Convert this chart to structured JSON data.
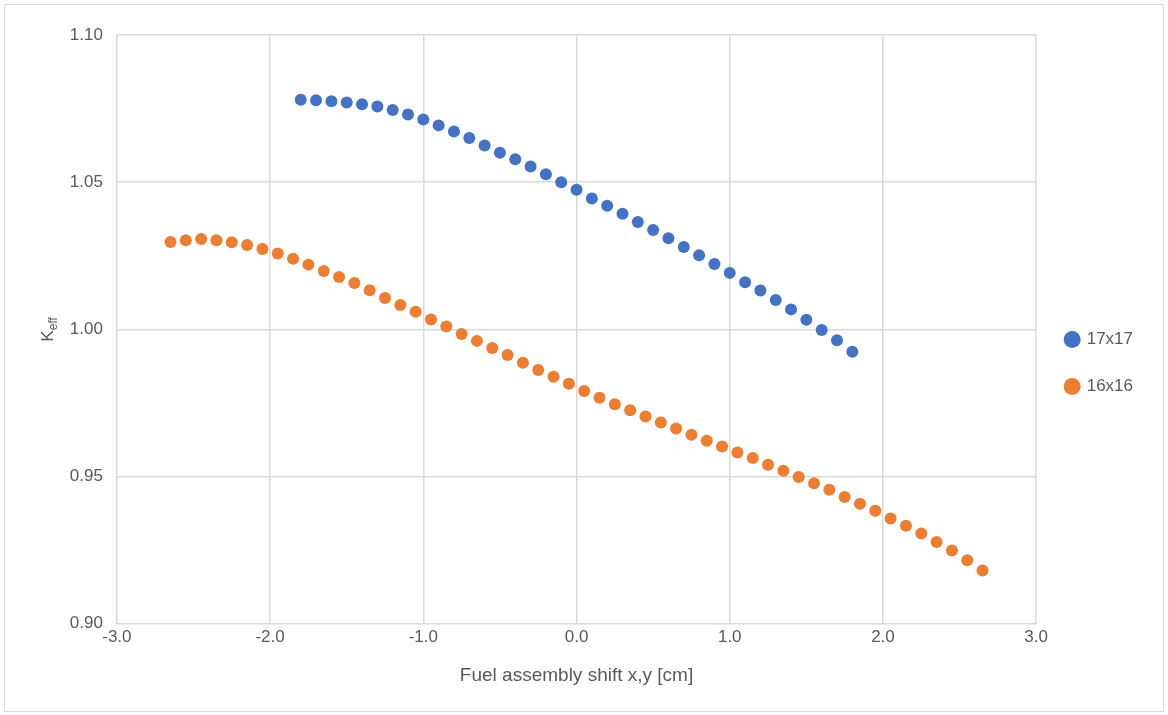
{
  "chart_data": {
    "type": "scatter",
    "xlabel": "Fuel assembly shift x,y [cm]",
    "ylabel": "K$_{eff}$",
    "xlim": [
      -3,
      3
    ],
    "ylim": [
      0.9,
      1.1
    ],
    "xticks": [
      {
        "value": -3,
        "label": "-3.0"
      },
      {
        "value": -2,
        "label": "-2.0"
      },
      {
        "value": -1,
        "label": "-1.0"
      },
      {
        "value": 0,
        "label": "0.0"
      },
      {
        "value": 1,
        "label": "1.0"
      },
      {
        "value": 2,
        "label": "2.0"
      },
      {
        "value": 3,
        "label": "3.0"
      }
    ],
    "yticks": [
      {
        "value": 0.9,
        "label": "0.90"
      },
      {
        "value": 0.95,
        "label": "0.95"
      },
      {
        "value": 1,
        "label": "1.00"
      },
      {
        "value": 1.05,
        "label": "1.05"
      },
      {
        "value": 1.1,
        "label": "1.10"
      }
    ],
    "grid": true,
    "legend": "right",
    "marker": "circle",
    "series": [
      {
        "name": "17x17",
        "color": "#4472c4",
        "x": [
          -1.8,
          -1.7,
          -1.6,
          -1.5,
          -1.4,
          -1.3,
          -1.2,
          -1.1,
          -1.0,
          -0.9,
          -0.8,
          -0.7,
          -0.6,
          -0.5,
          -0.4,
          -0.3,
          -0.2,
          -0.1,
          0.0,
          0.1,
          0.2,
          0.3,
          0.4,
          0.5,
          0.6,
          0.7,
          0.8,
          0.9,
          1.0,
          1.1,
          1.2,
          1.3,
          1.4,
          1.5,
          1.6,
          1.7,
          1.8
        ],
        "values": [
          1.078,
          1.0778,
          1.0775,
          1.0771,
          1.0765,
          1.0757,
          1.0745,
          1.073,
          1.0713,
          1.0693,
          1.0672,
          1.065,
          1.0625,
          1.06,
          1.0578,
          1.0553,
          1.0527,
          1.05,
          1.0474,
          1.0445,
          1.042,
          1.0393,
          1.0365,
          1.0338,
          1.031,
          1.028,
          1.0252,
          1.0222,
          1.0192,
          1.016,
          1.0132,
          1.01,
          1.0068,
          1.0033,
          0.9998,
          0.9963,
          0.9924
        ]
      },
      {
        "name": "16x16",
        "color": "#ed7d31",
        "x": [
          -2.65,
          -2.55,
          -2.45,
          -2.35,
          -2.25,
          -2.15,
          -2.05,
          -1.95,
          -1.85,
          -1.75,
          -1.65,
          -1.55,
          -1.45,
          -1.35,
          -1.25,
          -1.15,
          -1.05,
          -0.95,
          -0.85,
          -0.75,
          -0.65,
          -0.55,
          -0.45,
          -0.35,
          -0.25,
          -0.15,
          -0.05,
          0.05,
          0.15,
          0.25,
          0.35,
          0.45,
          0.55,
          0.65,
          0.75,
          0.85,
          0.95,
          1.05,
          1.15,
          1.25,
          1.35,
          1.45,
          1.55,
          1.65,
          1.75,
          1.85,
          1.95,
          2.05,
          2.15,
          2.25,
          2.35,
          2.45,
          2.55,
          2.65
        ],
        "values": [
          1.0297,
          1.0303,
          1.0307,
          1.0303,
          1.0296,
          1.0287,
          1.0273,
          1.0258,
          1.024,
          1.022,
          1.0198,
          1.0178,
          1.0158,
          1.0133,
          1.0107,
          1.0083,
          1.006,
          1.0034,
          1.001,
          0.9984,
          0.9961,
          0.9937,
          0.9913,
          0.9887,
          0.9862,
          0.9839,
          0.9815,
          0.9791,
          0.9768,
          0.9746,
          0.9725,
          0.9704,
          0.9684,
          0.9663,
          0.9642,
          0.9622,
          0.9602,
          0.9582,
          0.9563,
          0.954,
          0.952,
          0.9499,
          0.9477,
          0.9455,
          0.9431,
          0.9408,
          0.9384,
          0.9358,
          0.9333,
          0.9307,
          0.9278,
          0.9249,
          0.9216,
          0.9181
        ]
      }
    ]
  }
}
